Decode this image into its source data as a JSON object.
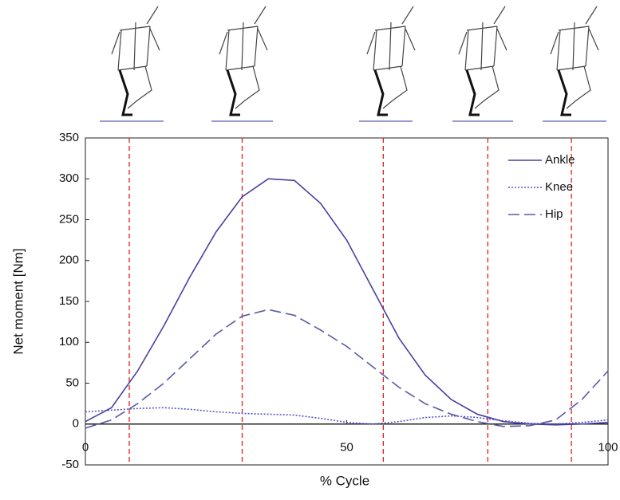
{
  "chart_data": {
    "type": "line",
    "xlabel": "% Cycle",
    "ylabel": "Net moment [Nm]",
    "x": [
      0,
      5,
      10,
      15,
      20,
      25,
      30,
      35,
      40,
      45,
      50,
      55,
      60,
      65,
      70,
      75,
      80,
      85,
      90,
      95,
      100
    ],
    "series": [
      {
        "name": "Ankle",
        "color": "#4a3fa0",
        "style": "solid",
        "values": [
          3,
          20,
          65,
          120,
          180,
          235,
          278,
          300,
          298,
          270,
          225,
          165,
          105,
          60,
          30,
          12,
          3,
          0,
          -1,
          0,
          2
        ]
      },
      {
        "name": "Knee",
        "color": "#5555cc",
        "style": "dotted",
        "values": [
          15,
          17,
          19,
          20,
          18,
          15,
          13,
          12,
          11,
          7,
          2,
          0,
          3,
          8,
          10,
          8,
          4,
          1,
          0,
          2,
          5
        ]
      },
      {
        "name": "Hip",
        "color": "#5a5aa8",
        "style": "dashed",
        "values": [
          -5,
          5,
          25,
          50,
          80,
          110,
          132,
          140,
          133,
          115,
          95,
          70,
          45,
          25,
          12,
          3,
          -3,
          -2,
          5,
          30,
          65
        ]
      }
    ],
    "event_lines": [
      8.4,
      30,
      57,
      77,
      93
    ],
    "event_color": "#e02020",
    "xlim": [
      0,
      100
    ],
    "xticks": [
      0,
      50,
      100
    ],
    "ylim": [
      -50,
      350
    ],
    "yticks": [
      -50,
      0,
      50,
      100,
      150,
      200,
      250,
      300,
      350
    ],
    "legend": "upper right"
  }
}
